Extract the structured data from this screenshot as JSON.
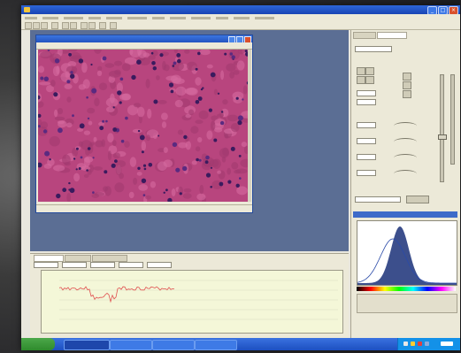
{
  "window": {
    "title": ""
  },
  "menu": {
    "items": []
  },
  "image_window": {
    "title": "",
    "status": {
      "left": "",
      "mid": "",
      "right": ""
    }
  },
  "right_panel": {
    "tabs": [],
    "histogram_title": ""
  },
  "bottom_panel": {
    "tabs": []
  },
  "taskbar": {
    "start_label": ""
  },
  "colors": {
    "titlebar": "#2253c0",
    "workspace": "#5b6e94",
    "tissue": "#b8457e",
    "histogram_fill": "#3c4f8c",
    "plot_bg": "#f4f7d8",
    "plot_line": "#e05050",
    "taskbar": "#1d4fc0",
    "start": "#2e8a2c"
  }
}
